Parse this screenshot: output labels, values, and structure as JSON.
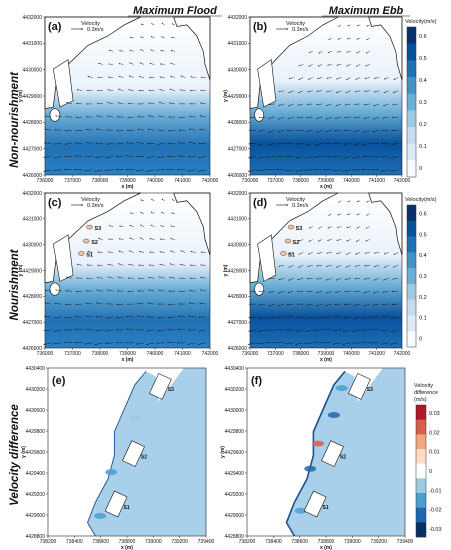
{
  "columns": {
    "flood": "Maximum Flood",
    "ebb": "Maximum Ebb"
  },
  "rows": {
    "top": "Non-nourishment",
    "middle": "Nourishment",
    "bottom": "Velocity difference"
  },
  "panels": {
    "a": {
      "label": "(a)",
      "ref_label": "Velocity",
      "ref_value": "0.3m/s"
    },
    "b": {
      "label": "(b)",
      "ref_label": "Velocity",
      "ref_value": "0.3m/s"
    },
    "c": {
      "label": "(c)",
      "ref_label": "Velocity",
      "ref_value": "0.3m/s",
      "sites": [
        "S3",
        "S2",
        "S1"
      ]
    },
    "d": {
      "label": "(d)",
      "ref_label": "Velocity",
      "ref_value": "0.3m/s",
      "sites": [
        "S3",
        "S2",
        "S1"
      ]
    },
    "e": {
      "label": "(e)",
      "sites": [
        "S3",
        "S2",
        "S1"
      ]
    },
    "f": {
      "label": "(f)",
      "sites": [
        "S3",
        "S2",
        "S1"
      ]
    }
  },
  "axes_top": {
    "xlabel": "x (m)",
    "ylabel": "y (m)",
    "xticks": [
      "736000",
      "737000",
      "738000",
      "739000",
      "740000",
      "741000",
      "742000"
    ],
    "yticks": [
      "4432000",
      "4431000",
      "4430000",
      "4429000",
      "4428000",
      "4427000",
      "4426000"
    ]
  },
  "axes_bottom": {
    "xlabel": "x (m)",
    "ylabel": "y (m)",
    "xticks": [
      "738200",
      "738400",
      "738600",
      "738800",
      "739000",
      "739200",
      "739400"
    ],
    "yticks": [
      "4430400",
      "4430200",
      "4430000",
      "4429800",
      "4429600",
      "4429400",
      "4429200",
      "4429000",
      "4428800"
    ]
  },
  "colorbar_velocity": {
    "title": "Velocity(m/s)",
    "ticks": [
      "0.6",
      "0.5",
      "0.4",
      "0.3",
      "0.2",
      "0.1",
      "0"
    ],
    "colors": [
      "#08306b",
      "#08519c",
      "#2171b5",
      "#4292c6",
      "#6baed6",
      "#9ecae1",
      "#c6dbef",
      "#deebf7",
      "#f7fbff"
    ]
  },
  "colorbar_diff": {
    "title_line1": "Velocity",
    "title_line2": "difference",
    "title_line3": "(m/s)",
    "ticks": [
      "0.03",
      "0.02",
      "0.01",
      "0",
      "-0.01",
      "-0.02",
      "-0.03"
    ],
    "colors": [
      "#b2182b",
      "#d6604d",
      "#f4a582",
      "#fddbc7",
      "#ffffff",
      "#9ecae1",
      "#4a9fd0",
      "#2166ac",
      "#053061"
    ]
  }
}
